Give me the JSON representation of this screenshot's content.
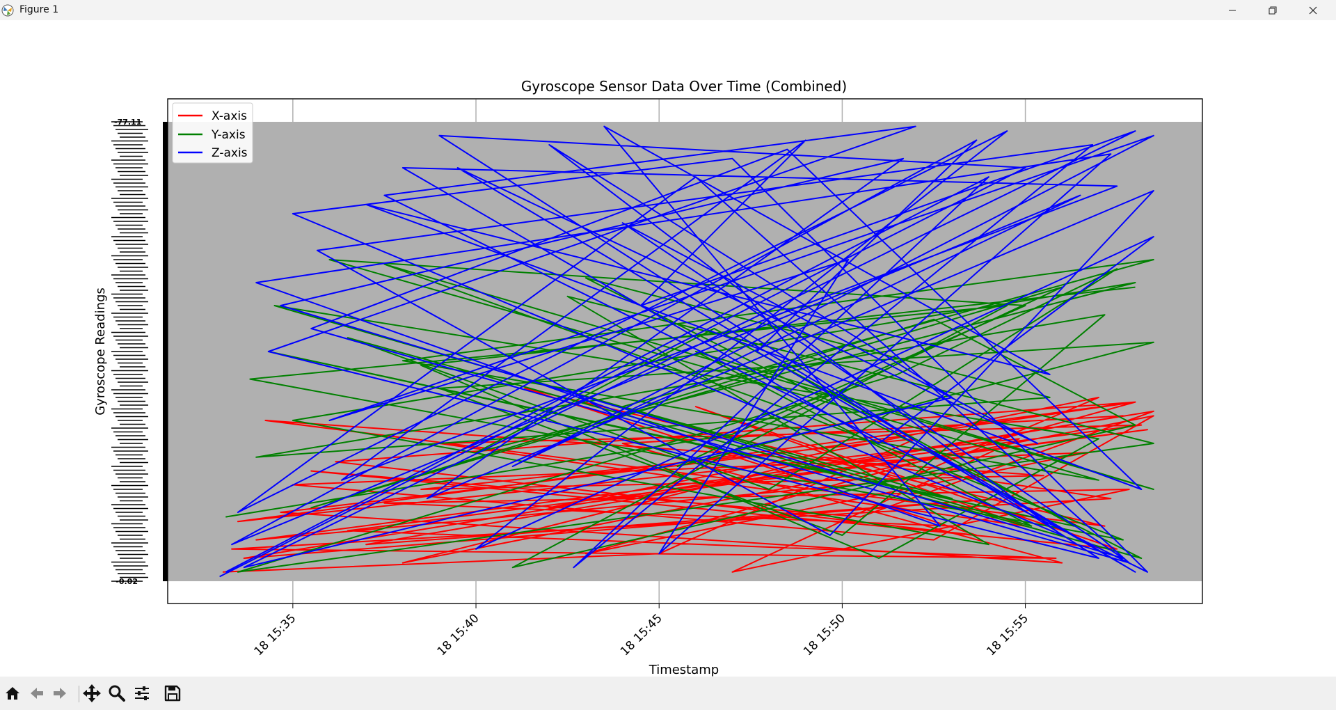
{
  "window": {
    "title": "Figure 1",
    "buttons": [
      "minimize",
      "restore",
      "close"
    ]
  },
  "toolbar": {
    "tools": [
      {
        "name": "home-icon"
      },
      {
        "name": "back-arrow-icon"
      },
      {
        "name": "forward-arrow-icon"
      },
      {
        "name": "pan-icon"
      },
      {
        "name": "zoom-icon"
      },
      {
        "name": "configure-subplots-icon"
      },
      {
        "name": "save-icon"
      }
    ]
  },
  "chart_data": {
    "type": "line",
    "title": "Gyroscope Sensor Data Over Time (Combined)",
    "xlabel": "Timestamp",
    "ylabel": "Gyroscope Readings",
    "x_ticks": [
      "18 15:35",
      "18 15:40",
      "18 15:45",
      "18 15:50",
      "18 15:55"
    ],
    "x_range": [
      "15:31:35",
      "15:59:50"
    ],
    "y_range": [
      0,
      1
    ],
    "y_top_label": "-77.11",
    "y_bottom_label": "-0.02",
    "plot_background": "#b0b0b0",
    "grid": true,
    "legend": "top-left",
    "series": [
      {
        "name": "X-axis",
        "color": "#ff0000",
        "x": [
          "15:33:05",
          "15:45:00",
          "15:52:00",
          "15:38:30",
          "15:55:30",
          "15:34:15",
          "15:57:10",
          "15:41:20",
          "15:53:40",
          "15:36:10",
          "15:58:00",
          "15:48:30",
          "15:34:40",
          "15:56:00",
          "15:44:00",
          "15:57:40",
          "15:37:00",
          "15:54:20",
          "15:33:40",
          "15:58:30",
          "15:50:30",
          "15:35:30",
          "15:57:30",
          "15:46:00",
          "15:55:00",
          "15:39:00",
          "15:58:10",
          "15:34:00",
          "15:51:40",
          "15:57:00",
          "15:42:00",
          "15:58:20",
          "15:36:30",
          "15:55:50",
          "15:33:20",
          "15:57:20",
          "15:49:30",
          "15:38:00",
          "15:58:30",
          "15:52:30",
          "15:35:00",
          "15:56:40",
          "15:43:00",
          "15:58:00",
          "15:33:30",
          "15:54:50",
          "15:47:00",
          "15:57:50",
          "15:37:30",
          "15:53:00"
        ],
        "y": [
          0.02,
          0.06,
          0.31,
          0.2,
          0.23,
          0.35,
          0.12,
          0.42,
          0.1,
          0.26,
          0.39,
          0.28,
          0.15,
          0.04,
          0.3,
          0.36,
          0.08,
          0.18,
          0.05,
          0.37,
          0.14,
          0.24,
          0.07,
          0.38,
          0.12,
          0.3,
          0.34,
          0.09,
          0.22,
          0.4,
          0.16,
          0.33,
          0.11,
          0.05,
          0.07,
          0.18,
          0.27,
          0.04,
          0.36,
          0.09,
          0.21,
          0.28,
          0.06,
          0.39,
          0.13,
          0.31,
          0.02,
          0.2,
          0.17,
          0.12
        ]
      },
      {
        "name": "Y-axis",
        "color": "#008000",
        "x": [
          "15:33:10",
          "15:47:00",
          "15:55:00",
          "15:36:00",
          "15:57:00",
          "15:38:00",
          "15:58:30",
          "15:44:00",
          "15:53:00",
          "15:34:20",
          "15:56:20",
          "15:46:30",
          "15:40:00",
          "15:58:00",
          "15:35:00",
          "15:54:00",
          "15:42:30",
          "15:58:30",
          "15:33:30",
          "15:51:30",
          "15:57:30",
          "15:48:00",
          "15:36:30",
          "15:58:10",
          "15:43:00",
          "15:55:40",
          "15:34:00",
          "15:57:10",
          "15:50:00",
          "15:39:00",
          "15:58:30",
          "15:45:30",
          "15:56:00",
          "15:35:30",
          "15:52:30",
          "15:58:00",
          "15:41:00",
          "15:54:30",
          "15:33:50",
          "15:57:40",
          "15:49:00",
          "15:37:30",
          "15:58:30",
          "15:46:00",
          "15:55:10",
          "15:34:30",
          "15:57:00",
          "15:51:00",
          "15:38:30",
          "15:58:00"
        ],
        "y": [
          0.14,
          0.32,
          0.6,
          0.7,
          0.22,
          0.48,
          0.7,
          0.38,
          0.18,
          0.5,
          0.12,
          0.55,
          0.28,
          0.65,
          0.35,
          0.08,
          0.62,
          0.3,
          0.02,
          0.45,
          0.68,
          0.2,
          0.53,
          0.05,
          0.66,
          0.4,
          0.27,
          0.58,
          0.1,
          0.42,
          0.52,
          0.25,
          0.64,
          0.16,
          0.57,
          0.34,
          0.03,
          0.6,
          0.44,
          0.09,
          0.36,
          0.69,
          0.2,
          0.5,
          0.12,
          0.6,
          0.31,
          0.05,
          0.47,
          0.64
        ]
      },
      {
        "name": "Z-axis",
        "color": "#0000ff",
        "x": [
          "15:33:00",
          "15:55:00",
          "15:39:00",
          "15:57:00",
          "15:34:20",
          "15:52:00",
          "15:37:30",
          "15:58:20",
          "15:47:00",
          "15:35:00",
          "15:56:00",
          "15:42:00",
          "15:53:00",
          "15:33:40",
          "15:58:00",
          "15:44:30",
          "15:49:00",
          "15:36:20",
          "15:57:30",
          "15:38:00",
          "15:51:00",
          "15:58:30",
          "15:40:00",
          "15:54:30",
          "15:33:30",
          "15:46:00",
          "15:57:50",
          "15:35:30",
          "15:48:30",
          "15:58:10",
          "15:37:00",
          "15:55:40",
          "15:43:30",
          "15:52:40",
          "15:34:00",
          "15:57:20",
          "15:45:00",
          "15:50:10",
          "15:36:00",
          "15:58:30",
          "15:41:00",
          "15:56:30",
          "15:33:20",
          "15:53:40",
          "15:47:40",
          "15:58:00",
          "15:39:30",
          "15:55:20",
          "15:44:00",
          "15:57:40",
          "15:34:40",
          "15:51:40",
          "15:38:40",
          "15:58:30",
          "15:49:40",
          "15:35:40",
          "15:56:50",
          "15:42:40",
          "15:54:00",
          "15:33:10"
        ],
        "y": [
          0.01,
          0.9,
          0.97,
          0.05,
          0.5,
          0.99,
          0.84,
          0.02,
          0.92,
          0.8,
          0.1,
          0.95,
          0.4,
          0.03,
          0.98,
          0.6,
          0.96,
          0.22,
          0.86,
          0.9,
          0.3,
          0.75,
          0.07,
          0.98,
          0.15,
          0.88,
          0.04,
          0.55,
          0.94,
          0.2,
          0.82,
          0.45,
          0.99,
          0.12,
          0.65,
          0.93,
          0.06,
          0.7,
          0.35,
          0.97,
          0.25,
          0.84,
          0.08,
          0.96,
          0.5,
          0.02,
          0.9,
          0.3,
          0.78,
          0.05,
          0.6,
          0.92,
          0.18,
          0.85,
          0.1,
          0.72,
          0.95,
          0.03,
          0.88,
          0.02
        ]
      }
    ]
  }
}
